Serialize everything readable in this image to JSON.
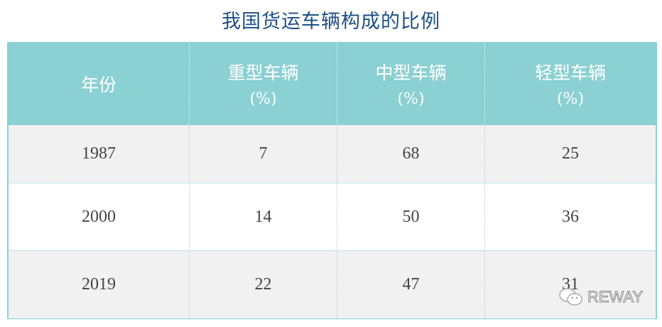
{
  "chart_data": {
    "type": "table",
    "title": "我国货运车辆构成的比例",
    "columns": [
      {
        "label": "年份",
        "unit": ""
      },
      {
        "label": "重型车辆",
        "unit": "(%)"
      },
      {
        "label": "中型车辆",
        "unit": "(%)"
      },
      {
        "label": "轻型车辆",
        "unit": "(%)"
      }
    ],
    "rows": [
      [
        "1987",
        "7",
        "68",
        "25"
      ],
      [
        "2000",
        "14",
        "50",
        "36"
      ],
      [
        "2019",
        "22",
        "47",
        "31"
      ]
    ]
  },
  "watermark": {
    "text": "REWAY",
    "icon": "wechat-icon"
  },
  "colors": {
    "header_bg": "#8bd0d3",
    "title": "#1d4f86",
    "stripe": "#f1f1f1"
  }
}
